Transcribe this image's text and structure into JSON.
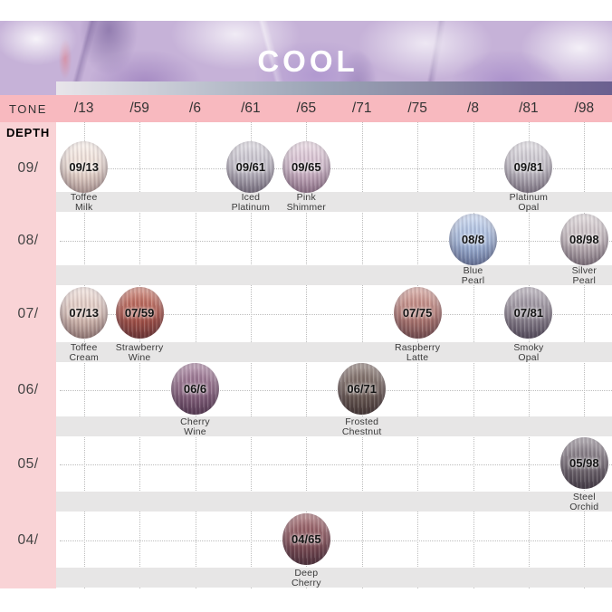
{
  "header": {
    "title": "COOL"
  },
  "tone": {
    "label": "TONE",
    "values": [
      "/13",
      "/59",
      "/6",
      "/61",
      "/65",
      "/71",
      "/75",
      "/8",
      "/81",
      "/98"
    ]
  },
  "depth": {
    "label": "DEPTH"
  },
  "rows": [
    {
      "depth_label": "09/",
      "swatches": [
        {
          "code": "09/13",
          "tone": "/13",
          "name": [
            "Toffee",
            "Milk"
          ],
          "colors": {
            "top": "#f9f0ea",
            "mid": "#f0e0d7",
            "bottom": "#e2c8bc"
          }
        },
        {
          "code": "09/61",
          "tone": "/61",
          "name": [
            "Iced",
            "Platinum"
          ],
          "colors": {
            "top": "#dcd9e0",
            "mid": "#c6c2cc",
            "bottom": "#98919f"
          }
        },
        {
          "code": "09/65",
          "tone": "/65",
          "name": [
            "Pink",
            "Shimmer"
          ],
          "colors": {
            "top": "#e9d8e2",
            "mid": "#d6bfd0",
            "bottom": "#b795ac"
          }
        },
        {
          "code": "09/81",
          "tone": "/81",
          "name": [
            "Platinum",
            "Opal"
          ],
          "colors": {
            "top": "#e0dde2",
            "mid": "#c9c5cd",
            "bottom": "#a39ba7"
          }
        }
      ]
    },
    {
      "depth_label": "08/",
      "swatches": [
        {
          "code": "08/8",
          "tone": "/8",
          "name": [
            "Blue",
            "Pearl"
          ],
          "colors": {
            "top": "#c8d6ef",
            "mid": "#abbfe0",
            "bottom": "#8298c4"
          }
        },
        {
          "code": "08/98",
          "tone": "/98",
          "name": [
            "Silver",
            "Pearl"
          ],
          "colors": {
            "top": "#dfd8da",
            "mid": "#cabfc3",
            "bottom": "#a1949b"
          }
        }
      ]
    },
    {
      "depth_label": "07/",
      "swatches": [
        {
          "code": "07/13",
          "tone": "/13",
          "name": [
            "Toffee",
            "Cream"
          ],
          "colors": {
            "top": "#f1e1db",
            "mid": "#e0c8bf",
            "bottom": "#c0a094"
          }
        },
        {
          "code": "07/59",
          "tone": "/59",
          "name": [
            "Strawberry",
            "Wine"
          ],
          "colors": {
            "top": "#cd8475",
            "mid": "#b25c50",
            "bottom": "#8c423b"
          }
        },
        {
          "code": "07/75",
          "tone": "/75",
          "name": [
            "Raspberry",
            "Latte"
          ],
          "colors": {
            "top": "#d6a69e",
            "mid": "#bb827b",
            "bottom": "#92605c"
          }
        },
        {
          "code": "07/81",
          "tone": "/81",
          "name": [
            "Smoky",
            "Opal"
          ],
          "colors": {
            "top": "#b7b0ba",
            "mid": "#968e99",
            "bottom": "#696170"
          }
        }
      ]
    },
    {
      "depth_label": "06/",
      "swatches": [
        {
          "code": "06/6",
          "tone": "/6",
          "name": [
            "Cherry",
            "Wine"
          ],
          "colors": {
            "top": "#ad89a4",
            "mid": "#936f8a",
            "bottom": "#6b4864"
          }
        },
        {
          "code": "06/71",
          "tone": "/71",
          "name": [
            "Frosted",
            "Chestnut"
          ],
          "colors": {
            "top": "#91817a",
            "mid": "#766660",
            "bottom": "#514239"
          }
        }
      ]
    },
    {
      "depth_label": "05/",
      "swatches": [
        {
          "code": "05/98",
          "tone": "/98",
          "name": [
            "Steel",
            "Orchid"
          ],
          "colors": {
            "top": "#9d959d",
            "mid": "#7d747c",
            "bottom": "#524a51"
          }
        }
      ]
    },
    {
      "depth_label": "04/",
      "swatches": [
        {
          "code": "04/65",
          "tone": "/65",
          "name": [
            "Deep",
            "Cherry"
          ],
          "colors": {
            "top": "#a87175",
            "mid": "#8b575e",
            "bottom": "#5f3a42"
          }
        }
      ]
    }
  ],
  "theme": {
    "tone_row_bg": "#f8b9bf",
    "left_col_bg": "#f9d3d6",
    "strip_bg": "#e7e6e6",
    "dotted_line": "#bdbdbd",
    "grad_bar_stops": [
      "#e8e5ea",
      "#c4c8d3",
      "#9aa3b5",
      "#8a8aa4",
      "#756d95",
      "#6b6090"
    ],
    "banner_base": "#c6b2d8",
    "title_color": "#ffffff"
  }
}
